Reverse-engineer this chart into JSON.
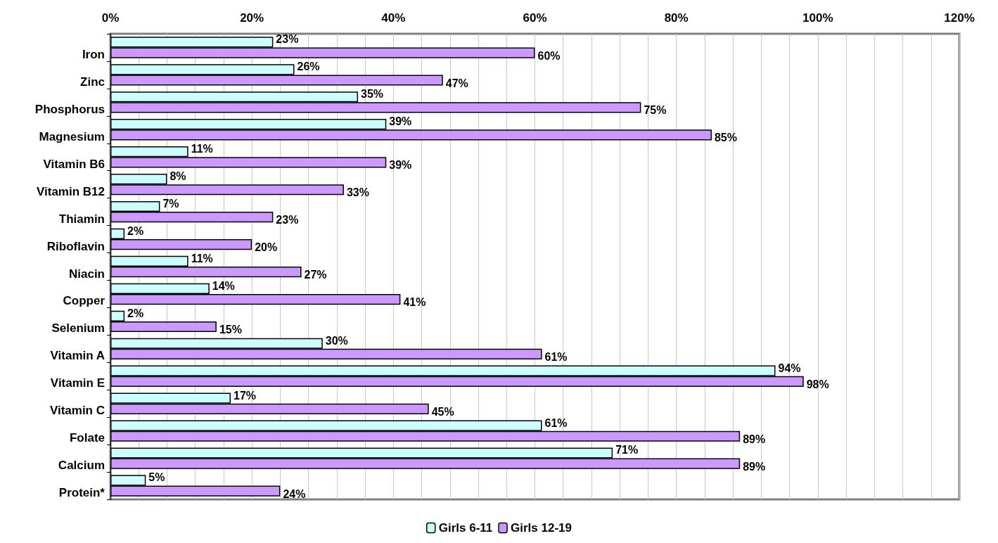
{
  "chart_data": {
    "type": "bar",
    "orientation": "horizontal",
    "categories": [
      "Iron",
      "Zinc",
      "Phosphorus",
      "Magnesium",
      "Vitamin B6",
      "Vitamin B12",
      "Thiamin",
      "Riboflavin",
      "Niacin",
      "Copper",
      "Selenium",
      "Vitamin A",
      "Vitamin E",
      "Vitamin C",
      "Folate",
      "Calcium",
      "Protein*"
    ],
    "series": [
      {
        "name": "Girls 6-11",
        "color": "#ccffff",
        "values": [
          23,
          26,
          35,
          39,
          11,
          8,
          7,
          2,
          11,
          14,
          2,
          30,
          94,
          17,
          61,
          71,
          5
        ],
        "value_labels": [
          "23%",
          "26%",
          "35%",
          "39%",
          "11%",
          "8%",
          "7%",
          "2%",
          "11%",
          "14%",
          "2%",
          "30%",
          "94%",
          "17%",
          "61%",
          "71%",
          "5%"
        ]
      },
      {
        "name": "Girls 12-19",
        "color": "#cc99ff",
        "values": [
          60,
          47,
          75,
          85,
          39,
          33,
          23,
          20,
          27,
          41,
          15,
          61,
          98,
          45,
          89,
          89,
          24
        ],
        "value_labels": [
          "60%",
          "47%",
          "75%",
          "85%",
          "39%",
          "33%",
          "23%",
          "20%",
          "27%",
          "41%",
          "15%",
          "61%",
          "98%",
          "45%",
          "89%",
          "89%",
          "24%"
        ]
      }
    ],
    "xlim": [
      0,
      120
    ],
    "xticks": [
      {
        "value": 0,
        "label": "0%"
      },
      {
        "value": 4,
        "label": null
      },
      {
        "value": 8,
        "label": null
      },
      {
        "value": 12,
        "label": null
      },
      {
        "value": 16,
        "label": null
      },
      {
        "value": 20,
        "label": "20%"
      },
      {
        "value": 24,
        "label": null
      },
      {
        "value": 28,
        "label": null
      },
      {
        "value": 32,
        "label": null
      },
      {
        "value": 36,
        "label": null
      },
      {
        "value": 40,
        "label": "40%"
      },
      {
        "value": 44,
        "label": null
      },
      {
        "value": 48,
        "label": null
      },
      {
        "value": 52,
        "label": null
      },
      {
        "value": 56,
        "label": null
      },
      {
        "value": 60,
        "label": "60%"
      },
      {
        "value": 64,
        "label": null
      },
      {
        "value": 68,
        "label": null
      },
      {
        "value": 72,
        "label": null
      },
      {
        "value": 76,
        "label": null
      },
      {
        "value": 80,
        "label": "80%"
      },
      {
        "value": 84,
        "label": null
      },
      {
        "value": 88,
        "label": null
      },
      {
        "value": 92,
        "label": null
      },
      {
        "value": 96,
        "label": null
      },
      {
        "value": 100,
        "label": "100%"
      },
      {
        "value": 104,
        "label": null
      },
      {
        "value": 108,
        "label": null
      },
      {
        "value": 112,
        "label": null
      },
      {
        "value": 116,
        "label": null
      },
      {
        "value": 120,
        "label": "120%"
      }
    ],
    "grid": "x",
    "legend": "bottom"
  }
}
